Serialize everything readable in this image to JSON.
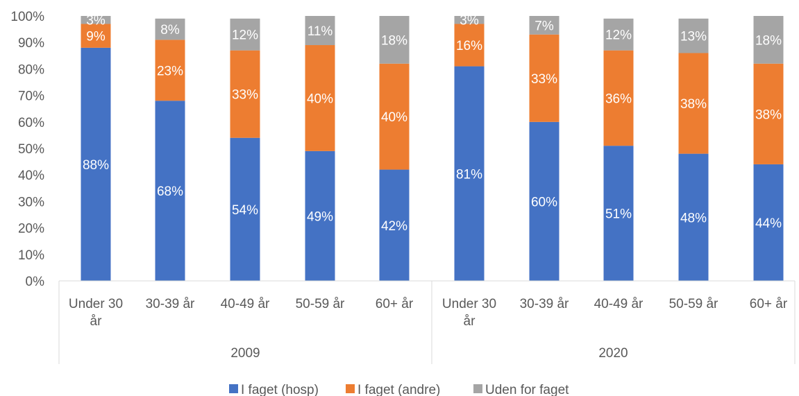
{
  "chart_data": {
    "type": "bar",
    "stacked": true,
    "percent": true,
    "ylim": [
      0,
      100
    ],
    "yticks": [
      "0%",
      "10%",
      "20%",
      "30%",
      "40%",
      "50%",
      "60%",
      "70%",
      "80%",
      "90%",
      "100%"
    ],
    "groups": [
      {
        "name": "2009",
        "categories": [
          [
            "Under 30",
            "år"
          ],
          [
            "30-39 år"
          ],
          [
            "40-49 år"
          ],
          [
            "50-59 år"
          ],
          [
            "60+ år"
          ]
        ]
      },
      {
        "name": "2020",
        "categories": [
          [
            "Under 30",
            "år"
          ],
          [
            "30-39 år"
          ],
          [
            "40-49 år"
          ],
          [
            "50-59 år"
          ],
          [
            "60+ år"
          ]
        ]
      }
    ],
    "series": [
      {
        "name": "I faget (hosp)",
        "color": "#4472c4",
        "values": [
          88,
          68,
          54,
          49,
          42,
          81,
          60,
          51,
          48,
          44
        ],
        "labels": [
          "88%",
          "68%",
          "54%",
          "49%",
          "42%",
          "81%",
          "60%",
          "51%",
          "48%",
          "44%"
        ]
      },
      {
        "name": "I faget (andre)",
        "color": "#ed7d31",
        "values": [
          9,
          23,
          33,
          40,
          40,
          16,
          33,
          36,
          38,
          38
        ],
        "labels": [
          "9%",
          "23%",
          "33%",
          "40%",
          "40%",
          "16%",
          "33%",
          "36%",
          "38%",
          "38%"
        ]
      },
      {
        "name": "Uden for faget",
        "color": "#a5a5a5",
        "values": [
          3,
          8,
          12,
          11,
          18,
          3,
          7,
          12,
          13,
          18
        ],
        "labels": [
          "3%",
          "8%",
          "12%",
          "11%",
          "18%",
          "3%",
          "7%",
          "12%",
          "13%",
          "18%"
        ]
      }
    ],
    "legend_position": "bottom",
    "grid": false
  }
}
